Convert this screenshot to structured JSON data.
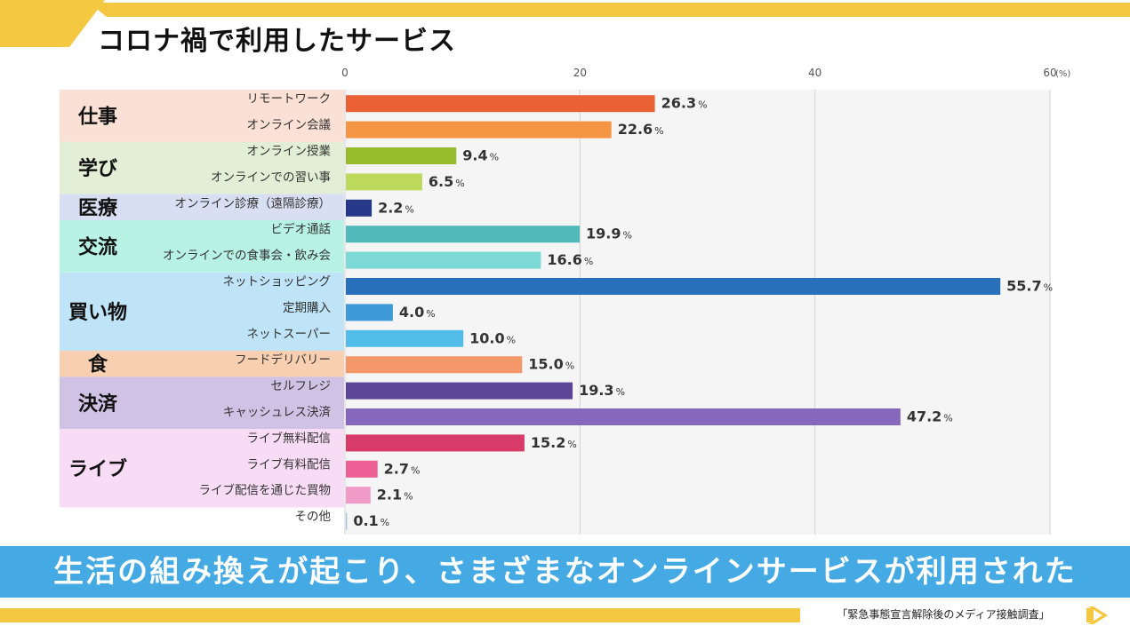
{
  "title": "コロナ禍で利用したサービス",
  "banner": "生活の組み換えが起こり、さまざまなオンラインサービスが利用された",
  "source": "「緊急事態宣言解除後のメディア接触調査」",
  "chart_data": {
    "type": "bar",
    "orientation": "horizontal",
    "title": "",
    "xlim": [
      0,
      60
    ],
    "ticks": [
      0,
      20,
      40,
      60
    ],
    "tick_labels": [
      "0",
      "20",
      "40",
      "60"
    ],
    "unit_label": "(%)",
    "value_suffix": "%",
    "grid": true,
    "groups": [
      {
        "label": "仕事",
        "color": "#fbe0d5",
        "items": [
          {
            "label": "リモートワーク",
            "value": 26.3,
            "color": "#ea6135"
          },
          {
            "label": "オンライン会議",
            "value": 22.6,
            "color": "#f39543"
          }
        ]
      },
      {
        "label": "学び",
        "color": "#e2eed5",
        "items": [
          {
            "label": "オンライン授業",
            "value": 9.4,
            "color": "#96bb2b"
          },
          {
            "label": "オンラインでの習い事",
            "value": 6.5,
            "color": "#bcd95b"
          }
        ]
      },
      {
        "label": "医療",
        "color": "#d9dff3",
        "items": [
          {
            "label": "オンライン診療（遠隔診療）",
            "value": 2.2,
            "color": "#26388a"
          }
        ]
      },
      {
        "label": "交流",
        "color": "#b8f2e4",
        "items": [
          {
            "label": "ビデオ通話",
            "value": 19.9,
            "color": "#50b9b9"
          },
          {
            "label": "オンラインでの食事会・飲み会",
            "value": 16.6,
            "color": "#7dd9d6"
          }
        ]
      },
      {
        "label": "買い物",
        "color": "#bfe3f7",
        "items": [
          {
            "label": "ネットショッピング",
            "value": 55.7,
            "color": "#2970bb"
          },
          {
            "label": "定期購入",
            "value": 4.0,
            "color": "#3f98d8"
          },
          {
            "label": "ネットスーパー",
            "value": 10.0,
            "color": "#52bde8"
          }
        ]
      },
      {
        "label": "食",
        "color": "#f9cfb1",
        "items": [
          {
            "label": "フードデリバリー",
            "value": 15.0,
            "color": "#f4986a"
          }
        ]
      },
      {
        "label": "決済",
        "color": "#d0c2e4",
        "items": [
          {
            "label": "セルフレジ",
            "value": 19.3,
            "color": "#5c4596"
          },
          {
            "label": "キャッシュレス決済",
            "value": 47.2,
            "color": "#8567bb"
          }
        ]
      },
      {
        "label": "ライブ",
        "color": "#f8dcf5",
        "items": [
          {
            "label": "ライブ無料配信",
            "value": 15.2,
            "color": "#d93b68"
          },
          {
            "label": "ライブ有料配信",
            "value": 2.7,
            "color": "#ec6096"
          },
          {
            "label": "ライブ配信を通じた買物",
            "value": 2.1,
            "color": "#f09ac7"
          }
        ]
      },
      {
        "label": "",
        "color": "#ffffff",
        "items": [
          {
            "label": "その他",
            "value": 0.1,
            "color": "#9ec4e2"
          }
        ]
      }
    ]
  }
}
